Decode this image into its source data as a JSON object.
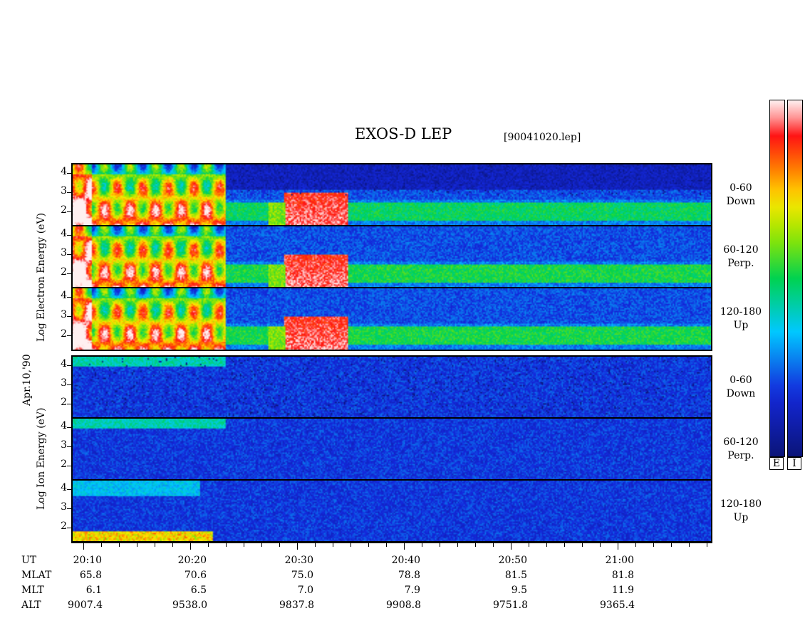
{
  "title": "EXOS-D LEP",
  "file_label": "[90041020.lep]",
  "date_label": "Apr.10,'90",
  "electron_axis_label": [
    "Log",
    "Electron",
    "Energy",
    "(eV)"
  ],
  "ion_axis_label": [
    "Log",
    "Ion",
    "Energy",
    "(eV)"
  ],
  "colorbar_labels": [
    "E",
    "I"
  ],
  "colors": {
    "background": "#ffffff",
    "frame": "#000000",
    "low": "#1a2ed6",
    "high": "#ff1a1a"
  },
  "chart_data": {
    "type": "heatmap",
    "title": "EXOS-D LEP",
    "x_label": "UT",
    "x_range": [
      "20:08",
      "21:08"
    ],
    "y_ticks": [
      "4",
      "3",
      "2"
    ],
    "y_range": [
      1,
      4.2
    ],
    "scale": "log energy",
    "panels": [
      {
        "species": "Electron",
        "pitch_angle": "0-60",
        "direction": "Down"
      },
      {
        "species": "Electron",
        "pitch_angle": "60-120",
        "direction": "Perp."
      },
      {
        "species": "Electron",
        "pitch_angle": "120-180",
        "direction": "Up"
      },
      {
        "species": "Ion",
        "pitch_angle": "0-60",
        "direction": "Down"
      },
      {
        "species": "Ion",
        "pitch_angle": "60-120",
        "direction": "Perp."
      },
      {
        "species": "Ion",
        "pitch_angle": "120-180",
        "direction": "Up"
      }
    ],
    "row_labels": [
      "UT",
      "MLAT",
      "MLT",
      "ALT"
    ],
    "columns": [
      {
        "UT": "20:10",
        "MLAT": "65.8",
        "MLT": "6.1",
        "ALT": "9007.4"
      },
      {
        "UT": "20:20",
        "MLAT": "70.6",
        "MLT": "6.5",
        "ALT": "9538.0"
      },
      {
        "UT": "20:30",
        "MLAT": "75.0",
        "MLT": "7.0",
        "ALT": "9837.8"
      },
      {
        "UT": "20:40",
        "MLAT": "78.8",
        "MLT": "7.9",
        "ALT": "9908.8"
      },
      {
        "UT": "20:50",
        "MLAT": "81.5",
        "MLT": "9.5",
        "ALT": "9751.8"
      },
      {
        "UT": "21:00",
        "MLAT": "81.8",
        "MLT": "11.9",
        "ALT": "9365.4"
      }
    ]
  }
}
